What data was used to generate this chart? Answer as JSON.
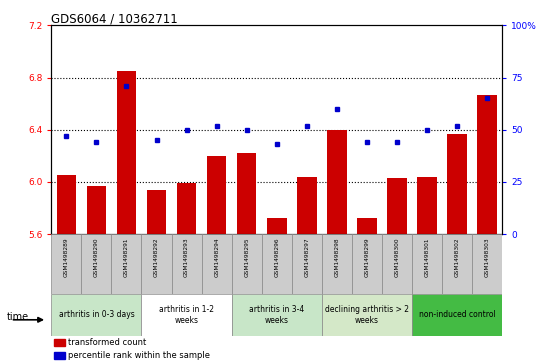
{
  "title": "GDS6064 / 10362711",
  "samples": [
    "GSM1498289",
    "GSM1498290",
    "GSM1498291",
    "GSM1498292",
    "GSM1498293",
    "GSM1498294",
    "GSM1498295",
    "GSM1498296",
    "GSM1498297",
    "GSM1498298",
    "GSM1498299",
    "GSM1498300",
    "GSM1498301",
    "GSM1498302",
    "GSM1498303"
  ],
  "bar_values": [
    6.05,
    5.97,
    6.85,
    5.94,
    5.99,
    6.2,
    6.22,
    5.72,
    6.04,
    6.4,
    5.72,
    6.03,
    6.04,
    6.37,
    6.67
  ],
  "dot_values": [
    47,
    44,
    71,
    45,
    50,
    52,
    50,
    43,
    52,
    60,
    44,
    44,
    50,
    52,
    65
  ],
  "ylim_left": [
    5.6,
    7.2
  ],
  "ylim_right": [
    0,
    100
  ],
  "yticks_left": [
    5.6,
    6.0,
    6.4,
    6.8,
    7.2
  ],
  "yticks_right": [
    0,
    25,
    50,
    75,
    100
  ],
  "bar_color": "#cc0000",
  "dot_color": "#0000cc",
  "bar_baseline": 5.6,
  "groups": [
    {
      "label": "arthritis in 0-3 days",
      "start": 0,
      "end": 3,
      "color": "#c8e6c8"
    },
    {
      "label": "arthritis in 1-2\nweeks",
      "start": 3,
      "end": 6,
      "color": "#ffffff"
    },
    {
      "label": "arthritis in 3-4\nweeks",
      "start": 6,
      "end": 9,
      "color": "#c8e6c8"
    },
    {
      "label": "declining arthritis > 2\nweeks",
      "start": 9,
      "end": 12,
      "color": "#d4e8c8"
    },
    {
      "label": "non-induced control",
      "start": 12,
      "end": 15,
      "color": "#44bb44"
    }
  ],
  "legend_items": [
    {
      "label": "transformed count",
      "color": "#cc0000"
    },
    {
      "label": "percentile rank within the sample",
      "color": "#0000cc"
    }
  ]
}
